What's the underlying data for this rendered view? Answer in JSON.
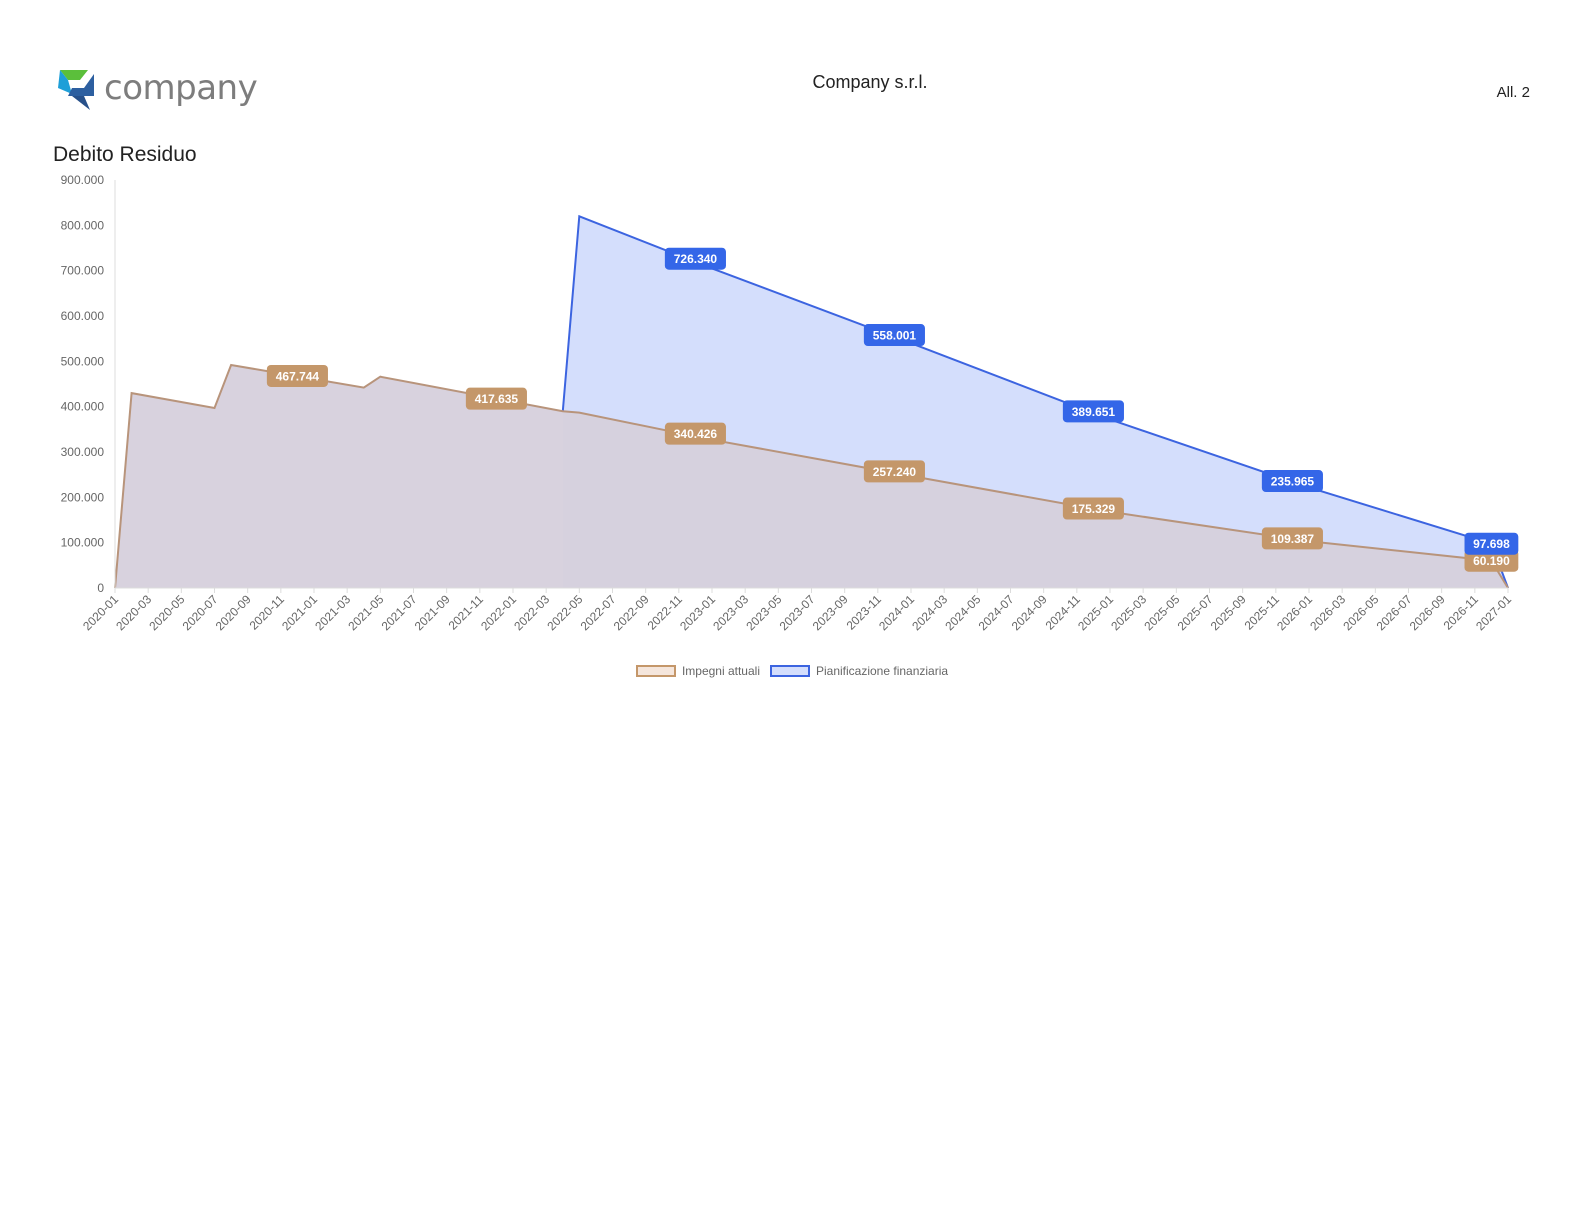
{
  "header": {
    "logo_text": "company",
    "company_name": "Company s.r.l.",
    "attachment": "All. 2"
  },
  "colors": {
    "impegni_line": "#b8947b",
    "impegni_fill": "#d6d0dc",
    "impegni_label": "#c4976a",
    "pianificazione_line": "#3c64e0",
    "pianificazione_fill": "#d4defc",
    "pianificazione_label": "#3466e8",
    "axis_text": "#666666",
    "logo_green": "#5bbf3b",
    "logo_blue": "#1e9fd8",
    "logo_dark": "#2d5fa0"
  },
  "chart_data": {
    "type": "area",
    "title": "Debito Residuo",
    "xlabel": "",
    "ylabel": "",
    "ylim": [
      0,
      900000
    ],
    "yticks": [
      0,
      100000,
      200000,
      300000,
      400000,
      500000,
      600000,
      700000,
      800000,
      900000
    ],
    "ytick_labels": [
      "0",
      "100.000",
      "200.000",
      "300.000",
      "400.000",
      "500.000",
      "600.000",
      "700.000",
      "800.000",
      "900.000"
    ],
    "x_start": "2020-01",
    "x_end": "2027-01",
    "xtick_labels": [
      "2020-01",
      "2020-03",
      "2020-05",
      "2020-07",
      "2020-09",
      "2020-11",
      "2021-01",
      "2021-03",
      "2021-05",
      "2021-07",
      "2021-09",
      "2021-11",
      "2022-01",
      "2022-03",
      "2022-05",
      "2022-07",
      "2022-09",
      "2022-11",
      "2023-01",
      "2023-03",
      "2023-05",
      "2023-07",
      "2023-09",
      "2023-11",
      "2024-01",
      "2024-03",
      "2024-05",
      "2024-07",
      "2024-09",
      "2024-11",
      "2025-01",
      "2025-03",
      "2025-05",
      "2025-07",
      "2025-09",
      "2025-11",
      "2026-01",
      "2026-03",
      "2026-05",
      "2026-07",
      "2026-09",
      "2026-11",
      "2027-01"
    ],
    "grid": false,
    "legend_position": "bottom",
    "series": [
      {
        "name": "Impegni attuali",
        "points": [
          [
            "2020-01",
            0
          ],
          [
            "2020-02",
            430000
          ],
          [
            "2020-07",
            397000
          ],
          [
            "2020-08",
            492000
          ],
          [
            "2021-04",
            442000
          ],
          [
            "2021-05",
            466000
          ],
          [
            "2022-04",
            390000
          ],
          [
            "2022-05",
            387000
          ],
          [
            "2023-01",
            327000
          ],
          [
            "2024-01",
            247000
          ],
          [
            "2025-01",
            168000
          ],
          [
            "2026-01",
            103000
          ],
          [
            "2026-12",
            60190
          ],
          [
            "2027-01",
            0
          ]
        ],
        "labels": [
          [
            "2020-12",
            467744,
            "467.744"
          ],
          [
            "2021-12",
            417635,
            "417.635"
          ],
          [
            "2022-12",
            340426,
            "340.426"
          ],
          [
            "2023-12",
            257240,
            "257.240"
          ],
          [
            "2024-12",
            175329,
            "175.329"
          ],
          [
            "2025-12",
            109387,
            "109.387"
          ],
          [
            "2026-12",
            60190,
            "60.190"
          ]
        ]
      },
      {
        "name": "Pianificazione finanziaria",
        "points": [
          [
            "2022-04",
            390000
          ],
          [
            "2022-05",
            820000
          ],
          [
            "2023-01",
            705000
          ],
          [
            "2024-01",
            540000
          ],
          [
            "2025-01",
            372000
          ],
          [
            "2026-01",
            222000
          ],
          [
            "2026-12",
            97698
          ],
          [
            "2027-01",
            0
          ]
        ],
        "labels": [
          [
            "2022-12",
            726340,
            "726.340"
          ],
          [
            "2023-12",
            558001,
            "558.001"
          ],
          [
            "2024-12",
            389651,
            "389.651"
          ],
          [
            "2025-12",
            235965,
            "235.965"
          ],
          [
            "2026-12",
            97698,
            "97.698"
          ]
        ]
      }
    ]
  }
}
